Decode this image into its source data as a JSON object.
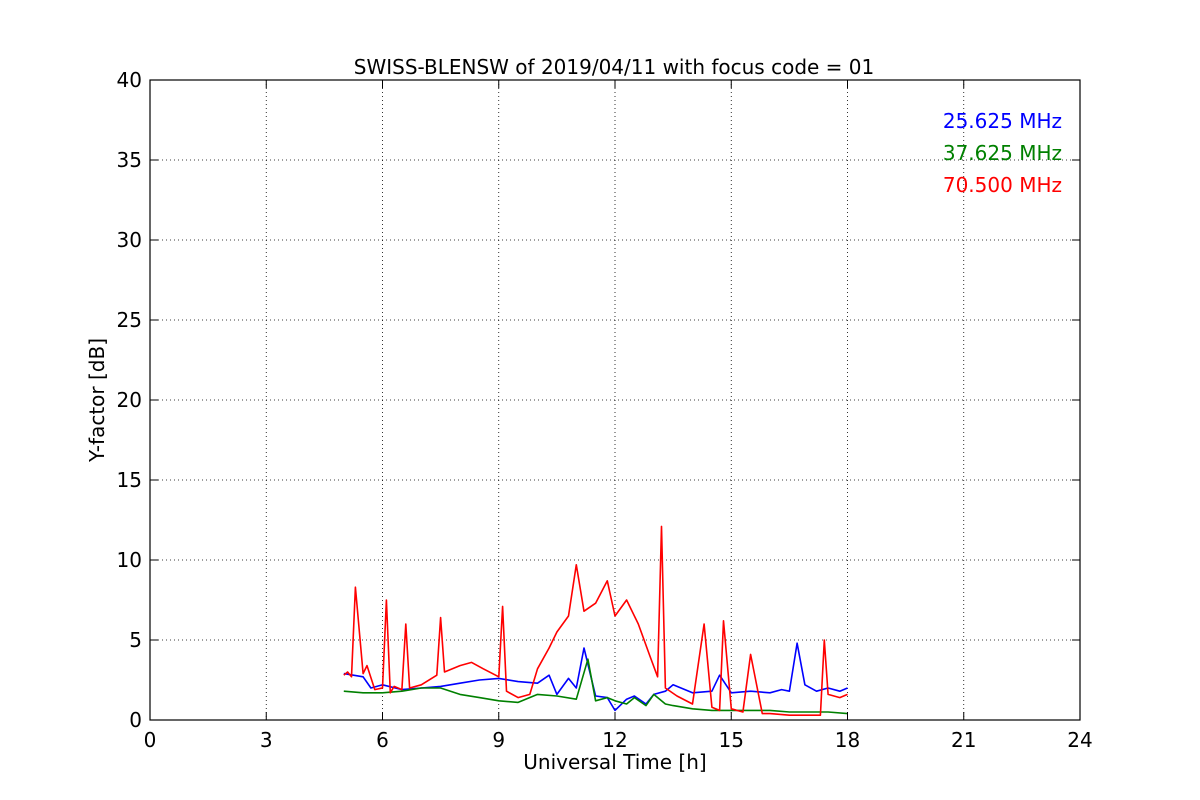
{
  "chart_data": {
    "type": "line",
    "title": "SWISS-BLENSW of 2019/04/11 with focus code = 01",
    "xlabel": "Universal Time [h]",
    "ylabel": "Y-factor [dB]",
    "xlim": [
      0,
      24
    ],
    "ylim": [
      0,
      40
    ],
    "xticks": [
      0,
      3,
      6,
      9,
      12,
      15,
      18,
      21,
      24
    ],
    "yticks": [
      0,
      5,
      10,
      15,
      20,
      25,
      30,
      35,
      40
    ],
    "grid": true,
    "legend_position": "top-right",
    "series": [
      {
        "name": "25.625 MHz",
        "color": "#0000ff",
        "x": [
          5.0,
          5.5,
          5.7,
          6.0,
          6.5,
          7.0,
          7.5,
          8.0,
          8.5,
          9.0,
          9.5,
          10.0,
          10.3,
          10.5,
          10.8,
          11.0,
          11.2,
          11.5,
          11.8,
          12.0,
          12.3,
          12.5,
          12.8,
          13.0,
          13.3,
          13.5,
          14.0,
          14.5,
          14.7,
          15.0,
          15.5,
          16.0,
          16.3,
          16.5,
          16.7,
          16.9,
          17.2,
          17.5,
          17.8,
          18.0
        ],
        "y": [
          2.9,
          2.7,
          2.0,
          2.2,
          1.9,
          2.0,
          2.1,
          2.3,
          2.5,
          2.6,
          2.4,
          2.3,
          2.8,
          1.6,
          2.6,
          2.0,
          4.5,
          1.5,
          1.4,
          0.6,
          1.3,
          1.5,
          1.0,
          1.6,
          1.8,
          2.2,
          1.7,
          1.8,
          2.8,
          1.7,
          1.8,
          1.7,
          1.9,
          1.8,
          4.8,
          2.2,
          1.8,
          2.0,
          1.8,
          2.0
        ]
      },
      {
        "name": "37.625 MHz",
        "color": "#008000",
        "x": [
          5.0,
          5.5,
          6.0,
          6.5,
          7.0,
          7.5,
          8.0,
          8.5,
          9.0,
          9.5,
          10.0,
          10.5,
          11.0,
          11.3,
          11.5,
          11.8,
          12.0,
          12.3,
          12.5,
          12.8,
          13.0,
          13.3,
          13.5,
          14.0,
          14.5,
          15.0,
          15.5,
          16.0,
          16.5,
          17.0,
          17.5,
          18.0
        ],
        "y": [
          1.8,
          1.7,
          1.7,
          1.8,
          2.0,
          2.0,
          1.6,
          1.4,
          1.2,
          1.1,
          1.6,
          1.5,
          1.3,
          3.8,
          1.2,
          1.4,
          1.2,
          1.0,
          1.4,
          0.9,
          1.6,
          1.0,
          0.9,
          0.7,
          0.6,
          0.6,
          0.6,
          0.6,
          0.5,
          0.5,
          0.5,
          0.4
        ]
      },
      {
        "name": "70.500 MHz",
        "color": "#ff0000",
        "x": [
          5.0,
          5.1,
          5.2,
          5.3,
          5.5,
          5.6,
          5.8,
          6.0,
          6.1,
          6.2,
          6.3,
          6.5,
          6.6,
          6.7,
          7.0,
          7.4,
          7.5,
          7.6,
          8.0,
          8.3,
          8.6,
          9.0,
          9.1,
          9.2,
          9.5,
          9.8,
          10.0,
          10.3,
          10.5,
          10.8,
          11.0,
          11.2,
          11.5,
          11.8,
          12.0,
          12.3,
          12.6,
          12.9,
          13.1,
          13.2,
          13.3,
          13.6,
          14.0,
          14.3,
          14.5,
          14.7,
          14.8,
          15.0,
          15.3,
          15.5,
          15.8,
          16.0,
          16.5,
          17.0,
          17.3,
          17.4,
          17.5,
          17.8,
          18.0
        ],
        "y": [
          2.8,
          3.0,
          2.7,
          8.3,
          2.9,
          3.4,
          1.9,
          2.0,
          7.5,
          1.7,
          2.1,
          1.9,
          6.0,
          2.0,
          2.2,
          2.8,
          6.4,
          3.0,
          3.4,
          3.6,
          3.2,
          2.7,
          7.1,
          1.8,
          1.4,
          1.6,
          3.2,
          4.5,
          5.5,
          6.5,
          9.7,
          6.8,
          7.3,
          8.7,
          6.5,
          7.5,
          6.0,
          4.0,
          2.7,
          12.1,
          2.0,
          1.5,
          1.0,
          6.0,
          0.8,
          0.6,
          6.2,
          0.7,
          0.5,
          4.1,
          0.4,
          0.4,
          0.3,
          0.3,
          0.3,
          5.0,
          1.6,
          1.4,
          1.6
        ]
      }
    ]
  }
}
